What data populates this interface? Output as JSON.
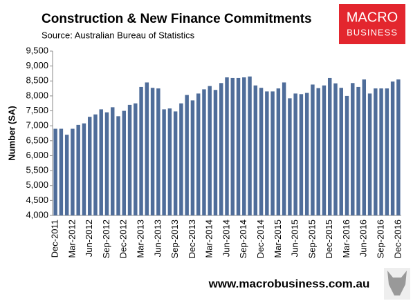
{
  "chart_data": {
    "type": "bar",
    "title": "Construction & New Finance Commitments",
    "subtitle": "Source: Australian Bureau of Statistics",
    "y_label": "Number (SA)",
    "brand": [
      "MACRO",
      "BUSINESS"
    ],
    "website": "www.macrobusiness.com.au",
    "color": "#4f6d9a",
    "categories": [
      "Dec-2011",
      null,
      null,
      "Mar-2012",
      null,
      null,
      "Jun-2012",
      null,
      null,
      "Sep-2012",
      null,
      null,
      "Dec-2012",
      null,
      null,
      "Mar-2013",
      null,
      null,
      "Jun-2013",
      null,
      null,
      "Sep-2013",
      null,
      null,
      "Dec-2013",
      null,
      null,
      "Mar-2014",
      null,
      null,
      "Jun-2014",
      null,
      null,
      "Sep-2014",
      null,
      null,
      "Dec-2014",
      null,
      null,
      "Mar-2015",
      null,
      null,
      "Jun-2015",
      null,
      null,
      "Sep-2015",
      null,
      null,
      "Dec-2015",
      null,
      null,
      "Mar-2016",
      null,
      null,
      "Jun-2016",
      null,
      null,
      "Sep-2016",
      null,
      null,
      "Dec-2016"
    ],
    "values": [
      6900,
      6900,
      6700,
      6900,
      7030,
      7080,
      7300,
      7380,
      7550,
      7450,
      7620,
      7320,
      7500,
      7700,
      7750,
      8300,
      8450,
      8270,
      8250,
      7550,
      7580,
      7480,
      7750,
      8030,
      7850,
      8080,
      8220,
      8330,
      8200,
      8430,
      8620,
      8600,
      8600,
      8620,
      8650,
      8350,
      8270,
      8150,
      8150,
      8250,
      8450,
      7920,
      8080,
      8060,
      8100,
      8380,
      8260,
      8350,
      8600,
      8420,
      8270,
      8000,
      8430,
      8300,
      8550,
      8080,
      8250,
      8250,
      8250,
      8480,
      8550
    ],
    "ylim": [
      4000,
      9500
    ],
    "yticks": [
      {
        "value": 4000,
        "label": "4,000"
      },
      {
        "value": 4500,
        "label": "4,500"
      },
      {
        "value": 5000,
        "label": "5,000"
      },
      {
        "value": 5500,
        "label": "5,500"
      },
      {
        "value": 6000,
        "label": "6,000"
      },
      {
        "value": 6500,
        "label": "6,500"
      },
      {
        "value": 7000,
        "label": "7,000"
      },
      {
        "value": 7500,
        "label": "7,500"
      },
      {
        "value": 8000,
        "label": "8,000"
      },
      {
        "value": 8500,
        "label": "8,500"
      },
      {
        "value": 9000,
        "label": "9,000"
      },
      {
        "value": 9500,
        "label": "9,500"
      }
    ],
    "grid": false
  }
}
